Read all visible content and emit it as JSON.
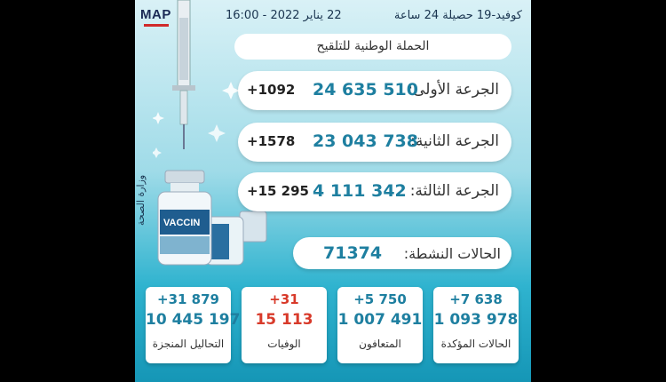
{
  "header": {
    "logo": "MAP",
    "date": "22 يناير 2022 - 16:00",
    "caption": "كوفيد-19 حصيلة 24 ساعة"
  },
  "campaign_title": "الحملة الوطنية للتلقيح",
  "doses": [
    {
      "label": "الجرعة الأولى:",
      "total": "24 635 510",
      "increase": "+1092"
    },
    {
      "label": "الجرعة الثانية:",
      "total": "23 043 738",
      "increase": "+1578"
    },
    {
      "label": "الجرعة الثالثة:",
      "total": "4 111 342",
      "increase": "+15 295"
    }
  ],
  "active_cases": {
    "label": "الحالات النشطة:",
    "value": "71374"
  },
  "ministry": "وزارة الصحة",
  "vaccine_label": "VACCIN",
  "stats": [
    {
      "label": "التحاليل المنجزة",
      "total": "10 445 197",
      "increase": "+31 879"
    },
    {
      "label": "الوفيات",
      "total": "15 113",
      "increase": "+31"
    },
    {
      "label": "المتعافون",
      "total": "1 007 491",
      "increase": "+5 750"
    },
    {
      "label": "الحالات المؤكدة",
      "total": "1 093 978",
      "increase": "+7 638"
    }
  ],
  "colors": {
    "accent": "#1e7fa0",
    "deaths": "#d83a2a"
  }
}
